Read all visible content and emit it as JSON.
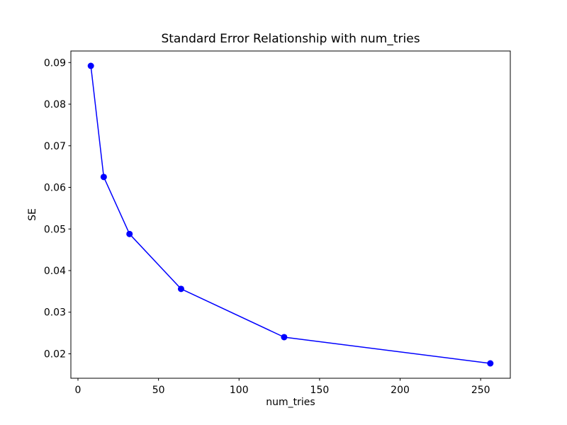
{
  "figure": {
    "background": "#ffffff"
  },
  "chart_data": {
    "type": "line",
    "title": "Standard Error Relationship with num_tries",
    "xlabel": "num_tries",
    "ylabel": "SE",
    "series": [
      {
        "name": "SE vs num_tries",
        "x": [
          8,
          16,
          32,
          64,
          128,
          256
        ],
        "y": [
          0.0892,
          0.0625,
          0.0488,
          0.0356,
          0.024,
          0.0177
        ],
        "color": "#0000ff",
        "marker": "circle",
        "marker_radius": 4.5,
        "line_width": 1.5
      }
    ],
    "xlim": [
      -4.4,
      268.4
    ],
    "ylim": [
      0.014125,
      0.092775
    ],
    "xticks": [
      0,
      50,
      100,
      150,
      200,
      250
    ],
    "yticks": [
      0.02,
      0.03,
      0.04,
      0.05,
      0.06,
      0.07,
      0.08,
      0.09
    ],
    "ytick_decimals": 2,
    "grid": false,
    "legend": null,
    "axis_color": "#000000",
    "text_color": "#000000",
    "plot_background": "#ffffff"
  }
}
